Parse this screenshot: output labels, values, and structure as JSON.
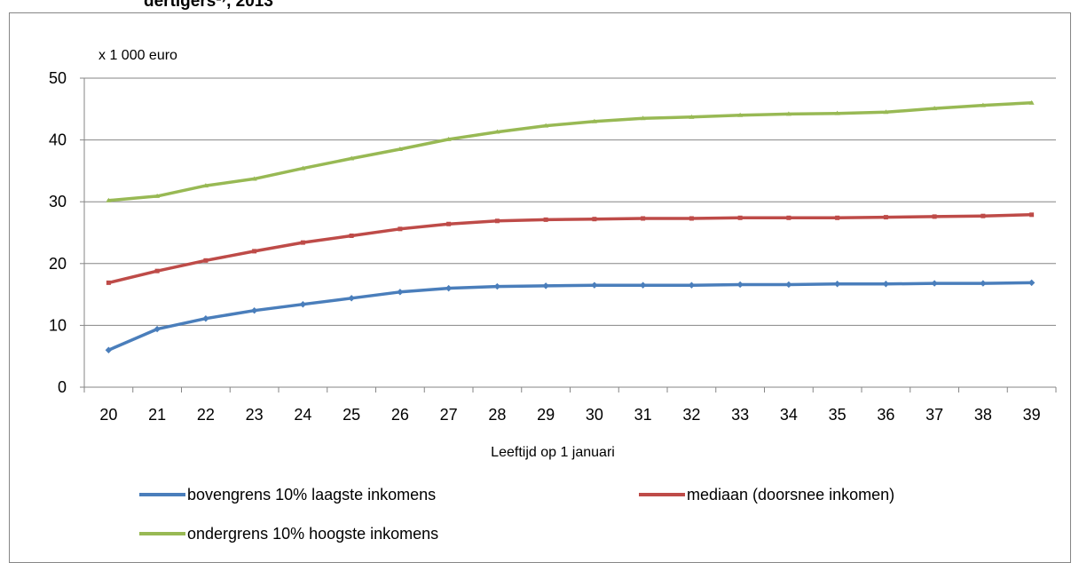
{
  "chart_data": {
    "type": "line",
    "title_fragment": "dertigers¹⁾, 2013",
    "y_unit_label": "x 1 000 euro",
    "xlabel": "Leeftijd op 1 januari",
    "ylim": [
      0,
      50
    ],
    "y_ticks": [
      0,
      10,
      20,
      30,
      40,
      50
    ],
    "grid": "horizontal",
    "legend_position": "bottom",
    "categories": [
      "20",
      "21",
      "22",
      "23",
      "24",
      "25",
      "26",
      "27",
      "28",
      "29",
      "30",
      "31",
      "32",
      "33",
      "34",
      "35",
      "36",
      "37",
      "38",
      "39"
    ],
    "series": [
      {
        "name": "bovengrens 10% laagste inkomens",
        "color": "#4a7ebb",
        "values": [
          6.0,
          9.4,
          11.1,
          12.4,
          13.4,
          14.4,
          15.4,
          16.0,
          16.3,
          16.4,
          16.5,
          16.5,
          16.5,
          16.6,
          16.6,
          16.7,
          16.7,
          16.8,
          16.8,
          16.9
        ]
      },
      {
        "name": "mediaan (doorsnee inkomen)",
        "color": "#be4b48",
        "values": [
          16.9,
          18.8,
          20.5,
          22.0,
          23.4,
          24.5,
          25.6,
          26.4,
          26.9,
          27.1,
          27.2,
          27.3,
          27.3,
          27.4,
          27.4,
          27.4,
          27.5,
          27.6,
          27.7,
          27.9
        ]
      },
      {
        "name": "ondergrens 10% hoogste inkomens",
        "color": "#98b954",
        "values": [
          30.2,
          30.9,
          32.6,
          33.7,
          35.4,
          37.0,
          38.5,
          40.1,
          41.3,
          42.3,
          43.0,
          43.5,
          43.7,
          44.0,
          44.2,
          44.3,
          44.5,
          45.1,
          45.6,
          46.0
        ]
      }
    ]
  }
}
